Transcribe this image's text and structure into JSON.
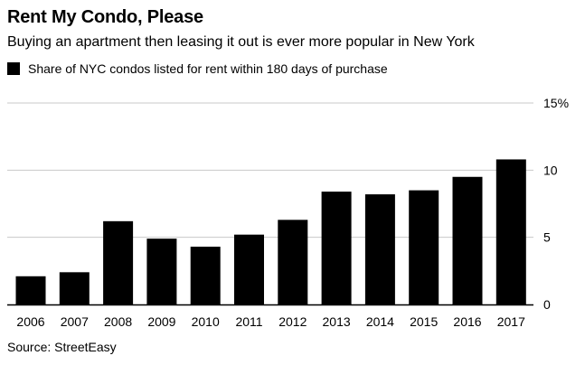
{
  "chart_data": {
    "type": "bar",
    "title": "Rent My Condo, Please",
    "subtitle": "Buying an apartment then leasing it out is ever more popular in New York",
    "legend": [
      {
        "label": "Share of NYC condos listed for rent within 180 days of purchase",
        "color": "#000000"
      }
    ],
    "categories": [
      "2006",
      "2007",
      "2008",
      "2009",
      "2010",
      "2011",
      "2012",
      "2013",
      "2014",
      "2015",
      "2016",
      "2017"
    ],
    "values": [
      2.1,
      2.4,
      6.2,
      4.9,
      4.3,
      5.2,
      6.3,
      8.4,
      8.2,
      8.5,
      9.5,
      10.8
    ],
    "ylim": [
      0,
      15
    ],
    "yticks": [
      {
        "value": 0,
        "label": "0"
      },
      {
        "value": 5,
        "label": "5"
      },
      {
        "value": 10,
        "label": "10"
      },
      {
        "value": 15,
        "label": "15%"
      }
    ],
    "xlabel": "",
    "ylabel": "",
    "grid": true,
    "source": "Source: StreetEasy"
  },
  "colors": {
    "bar": "#000000",
    "gridline": "#c8c8c8",
    "baseline": "#000000"
  }
}
